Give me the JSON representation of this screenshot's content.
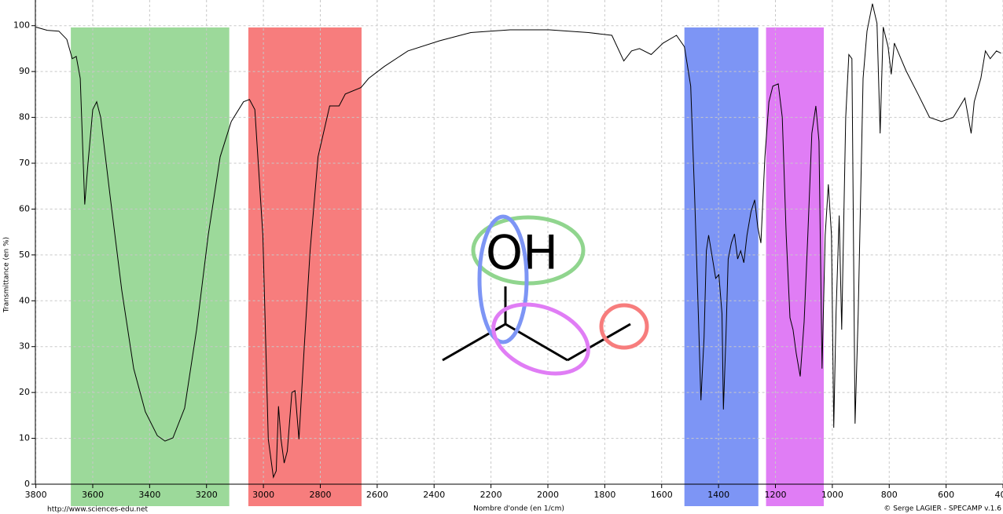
{
  "chart_data": {
    "type": "line",
    "xlabel": "Nombre d'onde (en 1/cm)",
    "ylabel": "Transmittance (en %)",
    "footer_left": "http://www.sciences-edu.net",
    "footer_right": "© Serge LAGIER - SPECAMP v.1.6",
    "annotation": "OH",
    "xlim": [
      3800,
      400
    ],
    "ylim": [
      0,
      105.6
    ],
    "xticks": [
      3800,
      3600,
      3400,
      3200,
      3000,
      2800,
      2600,
      2400,
      2200,
      2000,
      1800,
      1600,
      1400,
      1200,
      1000,
      800,
      600,
      400
    ],
    "yticks": [
      0,
      10,
      20,
      30,
      40,
      50,
      60,
      70,
      80,
      90,
      100
    ],
    "grid": true,
    "bands": [
      {
        "from": 3677,
        "to": 3120,
        "color": "#9cd99a"
      },
      {
        "from": 3053,
        "to": 2655,
        "color": "#f77d7d"
      },
      {
        "from": 1520,
        "to": 1260,
        "color": "#7d95f5"
      },
      {
        "from": 1233,
        "to": 1030,
        "color": "#e07df5"
      }
    ],
    "x": [
      3800,
      3760,
      3719,
      3691,
      3672,
      3658,
      3644,
      3628,
      3617,
      3600,
      3586,
      3572,
      3539,
      3498,
      3456,
      3415,
      3373,
      3346,
      3318,
      3277,
      3235,
      3194,
      3152,
      3113,
      3070,
      3049,
      3030,
      3002,
      2983,
      2965,
      2955,
      2947,
      2938,
      2927,
      2916,
      2900,
      2889,
      2875,
      2856,
      2836,
      2808,
      2767,
      2734,
      2712,
      2657,
      2630,
      2575,
      2492,
      2381,
      2271,
      2133,
      1995,
      1857,
      1775,
      1733,
      1706,
      1678,
      1637,
      1595,
      1548,
      1520,
      1498,
      1484,
      1471,
      1462,
      1451,
      1443,
      1435,
      1421,
      1410,
      1399,
      1388,
      1383,
      1374,
      1366,
      1355,
      1344,
      1333,
      1322,
      1311,
      1300,
      1286,
      1273,
      1262,
      1251,
      1237,
      1223,
      1209,
      1190,
      1176,
      1162,
      1149,
      1138,
      1127,
      1113,
      1099,
      1086,
      1072,
      1058,
      1047,
      1036,
      1025,
      1014,
      1003,
      995,
      987,
      976,
      967,
      953,
      942,
      931,
      920,
      909,
      892,
      878,
      859,
      843,
      832,
      821,
      804,
      793,
      782,
      741,
      699,
      658,
      616,
      575,
      534,
      512,
      501,
      478,
      462,
      445,
      423,
      407
    ],
    "series": [
      {
        "color": "#000000",
        "values": [
          99.7,
          99,
          98.8,
          97,
          92.8,
          93.3,
          88.5,
          61,
          69.7,
          81.7,
          83.4,
          80,
          62.8,
          42.3,
          25.2,
          15.8,
          10.6,
          9.4,
          10.1,
          16.6,
          33.7,
          54.3,
          71.4,
          79.1,
          83.4,
          83.9,
          81.7,
          54.3,
          9.8,
          1.5,
          2.9,
          17,
          9.8,
          4.6,
          7.2,
          20,
          20.4,
          9.8,
          30.3,
          50.9,
          71.4,
          82.5,
          82.5,
          85.1,
          86.5,
          88.5,
          91.1,
          94.5,
          96.7,
          98.5,
          99.1,
          99.1,
          98.5,
          97.9,
          92.3,
          94.5,
          95,
          93.7,
          96.2,
          97.9,
          95.4,
          86.8,
          62.8,
          37.2,
          18.3,
          32,
          50.9,
          54.3,
          49.1,
          44.9,
          45.7,
          37.2,
          16.3,
          32,
          49.1,
          52.6,
          54.6,
          49.1,
          50.9,
          48.3,
          54.3,
          59.4,
          62,
          56,
          52.6,
          71.4,
          83.4,
          86.8,
          87.3,
          80,
          54.3,
          36.3,
          33.7,
          28.6,
          23.5,
          35.4,
          54.3,
          76.5,
          82.5,
          74.8,
          25.2,
          54.3,
          65.4,
          54.3,
          12.3,
          37.2,
          58.6,
          33.7,
          80,
          93.7,
          92.8,
          13.2,
          37.2,
          88.5,
          98.8,
          104.8,
          100.5,
          76.5,
          99.7,
          95.4,
          89.4,
          96.2,
          90.2,
          85.1,
          80,
          79.1,
          80,
          84.2,
          76.5,
          83.4,
          88.5,
          94.5,
          92.8,
          94.5,
          94
        ]
      }
    ]
  }
}
